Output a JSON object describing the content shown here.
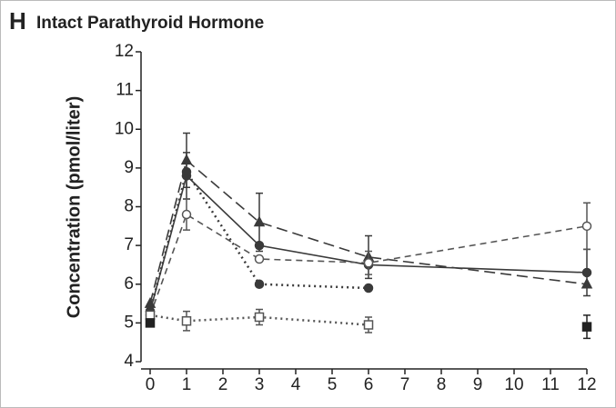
{
  "chart_data": {
    "type": "line",
    "panel": "H",
    "title": "Intact Parathyroid Hormone",
    "y_label": "Concentration (pmol/liter)",
    "x": [
      0,
      1,
      3,
      6,
      12
    ],
    "xlim": [
      0,
      12
    ],
    "xticks": [
      0,
      1,
      2,
      3,
      4,
      5,
      6,
      7,
      8,
      9,
      10,
      11,
      12
    ],
    "ylim": [
      4,
      12
    ],
    "yticks": [
      4,
      5,
      6,
      7,
      8,
      9,
      10,
      11,
      12
    ],
    "series": [
      {
        "color": "#3a3a3a",
        "dash": "solid",
        "marker": "circle",
        "filled": true,
        "values": [
          5.3,
          8.8,
          7.0,
          6.5,
          6.3
        ],
        "errors": [
          null,
          0.6,
          null,
          null,
          0.6
        ]
      },
      {
        "color": "#3a3a3a",
        "dash": "long-dash",
        "marker": "triangle",
        "filled": true,
        "values": [
          5.5,
          9.2,
          7.6,
          6.7,
          6.0
        ],
        "errors": [
          null,
          0.7,
          0.75,
          0.55,
          null
        ]
      },
      {
        "color": "#555555",
        "dash": "dash",
        "marker": "circle",
        "filled": false,
        "values": [
          5.2,
          7.8,
          6.65,
          6.55,
          7.5
        ],
        "errors": [
          null,
          0.4,
          null,
          0.3,
          0.6
        ]
      },
      {
        "color": "#3a3a3a",
        "dash": "dot",
        "marker": "circle",
        "filled": true,
        "values": [
          5.3,
          8.9,
          6.0,
          5.9,
          null
        ],
        "errors": [
          null,
          null,
          null,
          null,
          null
        ]
      },
      {
        "color": "#555555",
        "dash": "dot",
        "marker": "square",
        "filled": false,
        "values": [
          5.2,
          5.05,
          5.15,
          4.95,
          null
        ],
        "errors": [
          null,
          0.25,
          0.2,
          0.2,
          null
        ]
      },
      {
        "color": "#222222",
        "dash": "dot",
        "marker": "square",
        "filled": true,
        "values": [
          5.0,
          null,
          null,
          null,
          4.9
        ],
        "errors": [
          null,
          null,
          null,
          null,
          0.3
        ]
      }
    ]
  }
}
